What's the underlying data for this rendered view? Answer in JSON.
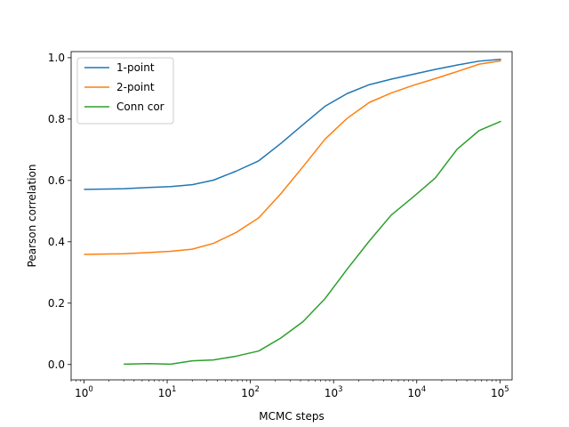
{
  "chart_data": {
    "type": "line",
    "title": "",
    "xlabel": "MCMC steps",
    "ylabel": "Pearson correlation",
    "xscale": "log",
    "xlim": [
      0.7,
      140000
    ],
    "ylim": [
      -0.05,
      1.02
    ],
    "x_ticks": [
      {
        "value": 1,
        "base": "10",
        "exp": "0"
      },
      {
        "value": 10,
        "base": "10",
        "exp": "1"
      },
      {
        "value": 100,
        "base": "10",
        "exp": "2"
      },
      {
        "value": 1000,
        "base": "10",
        "exp": "3"
      },
      {
        "value": 10000,
        "base": "10",
        "exp": "4"
      },
      {
        "value": 100000,
        "base": "10",
        "exp": "5"
      }
    ],
    "y_ticks": [
      {
        "value": 0.0,
        "label": "0.0"
      },
      {
        "value": 0.2,
        "label": "0.2"
      },
      {
        "value": 0.4,
        "label": "0.4"
      },
      {
        "value": 0.6,
        "label": "0.6"
      },
      {
        "value": 0.8,
        "label": "0.8"
      },
      {
        "value": 1.0,
        "label": "1.0"
      }
    ],
    "grid": false,
    "legend_position": "upper-left",
    "series": [
      {
        "name": "1-point",
        "color": "#1f77b4",
        "x": [
          1,
          3,
          6,
          11,
          20,
          36,
          67,
          126,
          231,
          430,
          791,
          1450,
          2680,
          4930,
          9060,
          16700,
          30600,
          56400,
          103000
        ],
        "y": [
          0.571,
          0.573,
          0.577,
          0.58,
          0.586,
          0.601,
          0.63,
          0.664,
          0.72,
          0.782,
          0.842,
          0.883,
          0.912,
          0.93,
          0.946,
          0.962,
          0.976,
          0.989,
          0.995
        ]
      },
      {
        "name": "2-point",
        "color": "#ff7f0e",
        "x": [
          1,
          3,
          6,
          11,
          20,
          36,
          67,
          126,
          231,
          430,
          791,
          1450,
          2680,
          4930,
          9060,
          16700,
          30600,
          56400,
          103000
        ],
        "y": [
          0.359,
          0.361,
          0.365,
          0.369,
          0.376,
          0.395,
          0.43,
          0.478,
          0.556,
          0.645,
          0.735,
          0.802,
          0.854,
          0.885,
          0.91,
          0.932,
          0.955,
          0.979,
          0.99
        ]
      },
      {
        "name": "Conn cor",
        "color": "#2ca02c",
        "x": [
          3,
          6,
          11,
          20,
          36,
          67,
          126,
          231,
          430,
          791,
          1450,
          2680,
          4930,
          9060,
          16700,
          30600,
          56400,
          103000
        ],
        "y": [
          0.001,
          0.003,
          0.001,
          0.012,
          0.015,
          0.027,
          0.044,
          0.086,
          0.14,
          0.215,
          0.31,
          0.402,
          0.487,
          0.546,
          0.608,
          0.702,
          0.763,
          0.793
        ]
      }
    ]
  }
}
